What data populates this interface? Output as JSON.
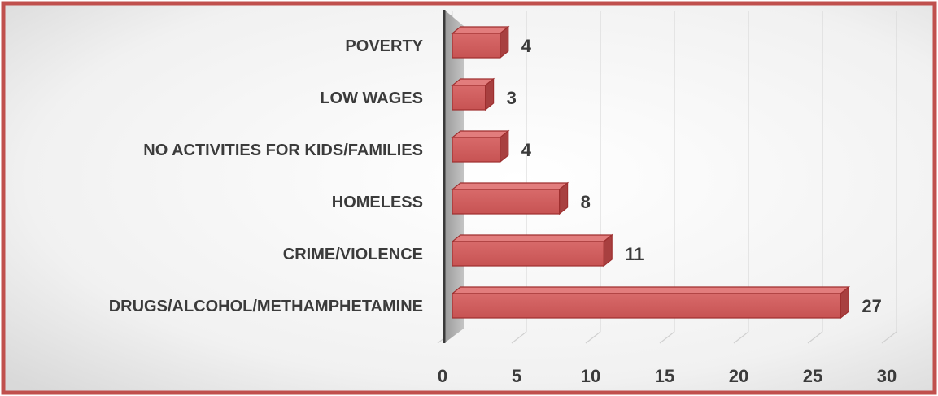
{
  "chart_data": {
    "type": "bar",
    "orientation": "horizontal",
    "title": "",
    "xlabel": "",
    "ylabel": "",
    "categories": [
      "POVERTY",
      "LOW WAGES",
      "NO ACTIVITIES FOR KIDS/FAMILIES",
      "HOMELESS",
      "CRIME/VIOLENCE",
      "DRUGS/ALCOHOL/METHAMPHETAMINE"
    ],
    "values": [
      4,
      3,
      4,
      8,
      11,
      27
    ],
    "value_labels": [
      "4",
      "3",
      "4",
      "8",
      "11",
      "27"
    ],
    "xlim": [
      0,
      30
    ],
    "x_ticks": [
      "0",
      "5",
      "10",
      "15",
      "20",
      "25",
      "30"
    ],
    "grid": true,
    "legend": "none",
    "style": "3d",
    "colors": {
      "bar": "#cd5c5c",
      "bar_top": "#e27d7d",
      "bar_side": "#a84040",
      "bar_edge": "#9e2f2f",
      "frame": "#c0504d",
      "wall": "#a6a6a6"
    }
  }
}
